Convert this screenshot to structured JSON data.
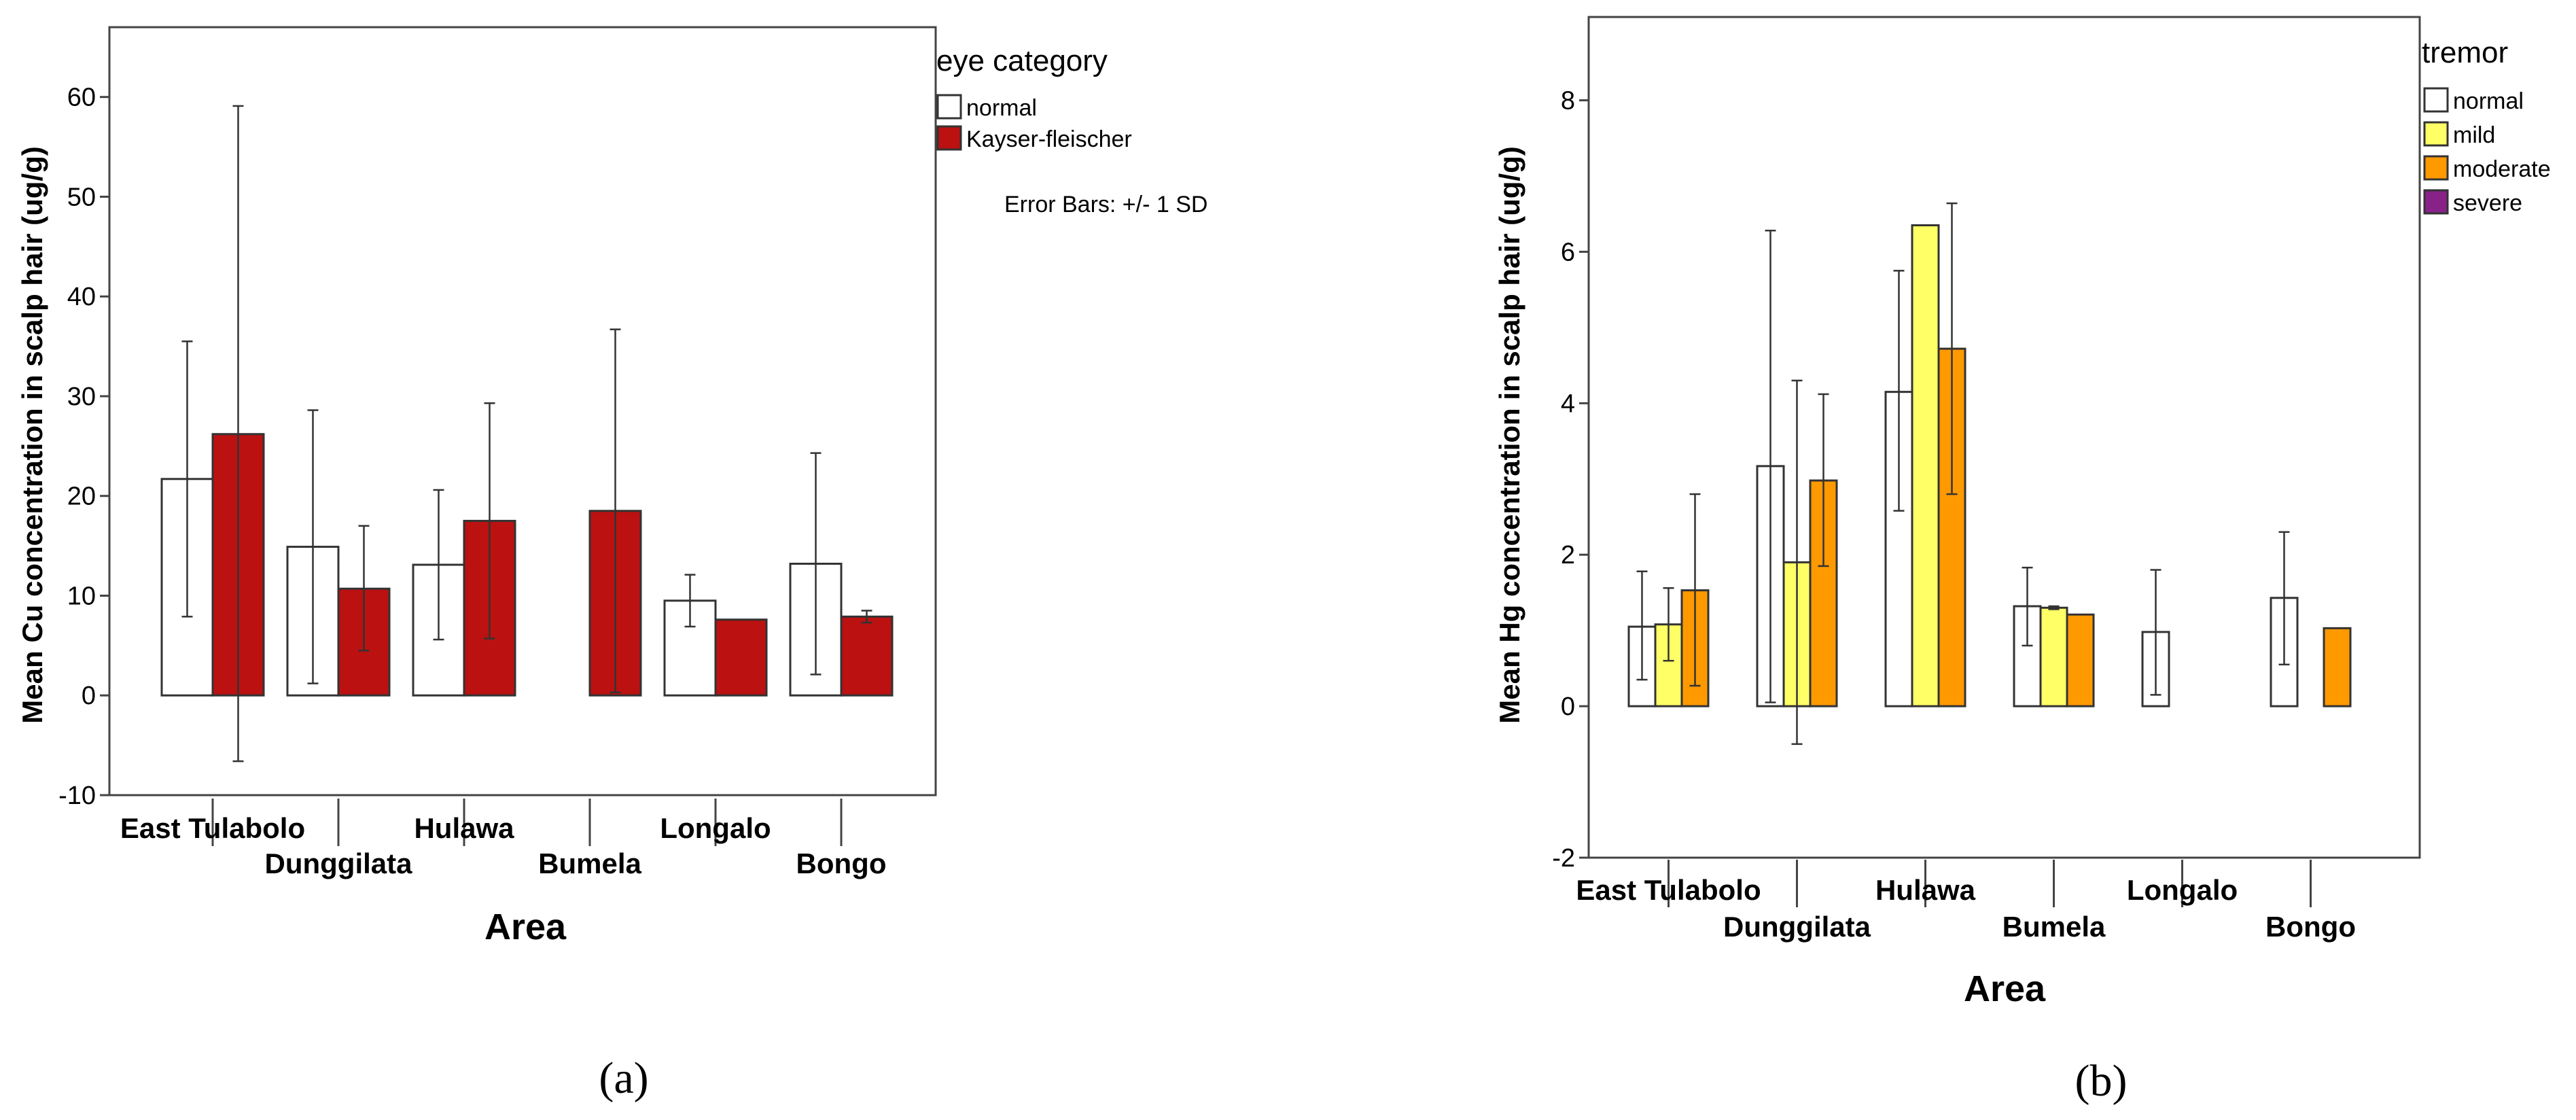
{
  "chart_data": [
    {
      "type": "bar",
      "panel_label": "(a)",
      "xlabel": "Area",
      "ylabel": "Mean Cu concentration in scalp hair (ug/g)",
      "ylim": [
        -10,
        67
      ],
      "yticks": [
        -10,
        0,
        10,
        20,
        30,
        40,
        50,
        60
      ],
      "legend_title": "eye category",
      "error_note": "Error Bars: +/- 1 SD",
      "categories": [
        "East Tulabolo",
        "Dunggilata",
        "Hulawa",
        "Bumela",
        "Longalo",
        "Bongo"
      ],
      "series": [
        {
          "name": "normal",
          "color": "#ffffff",
          "values": [
            21.7,
            14.9,
            13.1,
            null,
            9.5,
            13.2
          ],
          "err_low": [
            7.9,
            1.2,
            5.6,
            null,
            6.9,
            2.1
          ],
          "err_high": [
            35.5,
            28.6,
            20.6,
            null,
            12.1,
            24.3
          ]
        },
        {
          "name": "Kayser-fleischer",
          "color": "#bb1111",
          "values": [
            26.2,
            10.7,
            17.5,
            18.5,
            7.6,
            7.9
          ],
          "err_low": [
            -6.6,
            4.5,
            5.7,
            0.3,
            null,
            7.3
          ],
          "err_high": [
            59.1,
            17.0,
            29.3,
            36.7,
            null,
            8.5
          ]
        }
      ]
    },
    {
      "type": "bar",
      "panel_label": "(b)",
      "xlabel": "Area",
      "ylabel": "Mean Hg concentration in scalp hair (ug/g)",
      "ylim": [
        -2,
        9.1
      ],
      "yticks": [
        -2,
        0,
        2,
        4,
        6,
        8
      ],
      "legend_title": "tremor",
      "categories": [
        "East Tulabolo",
        "Dunggilata",
        "Hulawa",
        "Bumela",
        "Longalo",
        "Bongo"
      ],
      "series": [
        {
          "name": "normal",
          "color": "#ffffff",
          "values": [
            1.05,
            3.17,
            4.15,
            1.32,
            0.98,
            1.43
          ],
          "err_low": [
            0.35,
            0.05,
            2.58,
            0.8,
            0.15,
            0.55
          ],
          "err_high": [
            1.78,
            6.28,
            5.75,
            1.83,
            1.8,
            2.3
          ]
        },
        {
          "name": "mild",
          "color": "#ffff66",
          "values": [
            1.08,
            1.9,
            6.35,
            1.3,
            null,
            null
          ],
          "err_low": [
            0.6,
            -0.5,
            null,
            1.28,
            null,
            null
          ],
          "err_high": [
            1.56,
            4.3,
            null,
            1.32,
            null,
            null
          ]
        },
        {
          "name": "moderate",
          "color": "#ff9900",
          "values": [
            1.53,
            2.98,
            4.72,
            1.21,
            null,
            1.03
          ],
          "err_low": [
            0.27,
            1.85,
            2.8,
            null,
            null,
            null
          ],
          "err_high": [
            2.8,
            4.12,
            6.64,
            null,
            null,
            null
          ]
        },
        {
          "name": "severe",
          "color": "#882288",
          "values": [
            null,
            null,
            null,
            null,
            null,
            null
          ],
          "err_low": [
            null,
            null,
            null,
            null,
            null,
            null
          ],
          "err_high": [
            null,
            null,
            null,
            null,
            null,
            null
          ]
        }
      ]
    }
  ]
}
